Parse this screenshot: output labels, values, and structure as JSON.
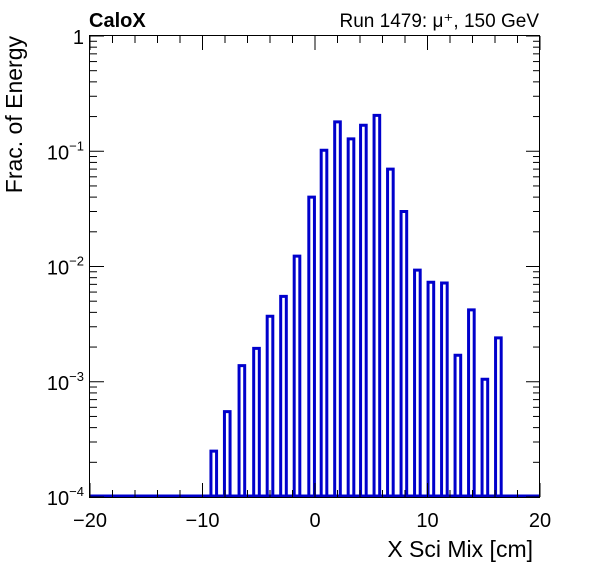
{
  "chart_data": {
    "type": "bar",
    "title_left": "CaloX",
    "title_right": "Run 1479:   μ⁺, 150 GeV",
    "xlabel": "X Sci Mix [cm]",
    "ylabel": "Frac. of Energy",
    "xlim": [
      -20,
      20
    ],
    "ylim": [
      0.0001,
      1
    ],
    "yscale": "log",
    "grid": false,
    "bar_width": 0.5,
    "x_ticks": [
      {
        "value": -20,
        "label": "−20"
      },
      {
        "value": -10,
        "label": "−10"
      },
      {
        "value": 0,
        "label": "0"
      },
      {
        "value": 10,
        "label": "10"
      },
      {
        "value": 20,
        "label": "20"
      }
    ],
    "y_ticks": [
      {
        "value": 0.0001,
        "base": "10",
        "exp": "−4"
      },
      {
        "value": 0.001,
        "base": "10",
        "exp": "−3"
      },
      {
        "value": 0.01,
        "base": "10",
        "exp": "−2"
      },
      {
        "value": 0.1,
        "base": "10",
        "exp": "−1"
      },
      {
        "value": 1,
        "base": "1",
        "exp": ""
      }
    ],
    "color": "#0000cc",
    "x": [
      -9.0,
      -7.8,
      -6.5,
      -5.2,
      -4.0,
      -2.8,
      -1.6,
      -0.3,
      0.8,
      2.0,
      3.2,
      4.3,
      5.5,
      6.7,
      7.9,
      9.1,
      10.3,
      11.5,
      12.7,
      13.9,
      15.1,
      16.3
    ],
    "values": [
      0.00025,
      0.00055,
      0.00138,
      0.00195,
      0.0037,
      0.0055,
      0.0123,
      0.04,
      0.102,
      0.18,
      0.128,
      0.168,
      0.205,
      0.07,
      0.03,
      0.0093,
      0.0073,
      0.0072,
      0.0017,
      0.0042,
      0.00105,
      0.0024
    ]
  }
}
